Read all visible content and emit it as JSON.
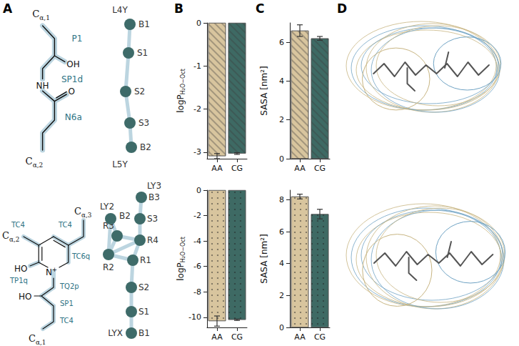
{
  "panel_letters": [
    "A",
    "B",
    "C",
    "D"
  ],
  "molecules": [
    {
      "atoms": [
        "Cα,1",
        "OH",
        "NH",
        "O",
        "Cα,2"
      ],
      "beads": [
        "P1",
        "SP1d",
        "N6a"
      ],
      "cg_nodes": [
        "B1",
        "S1",
        "S2",
        "S3",
        "B2"
      ],
      "cg_tags": [
        "L4Y",
        "L5Y"
      ]
    },
    {
      "atoms": [
        "Cα,3",
        "Cα,2",
        "HO",
        "N+",
        "HO",
        "Cα,1"
      ],
      "beads": [
        "TC4",
        "TC4",
        "TC6q",
        "TP1q",
        "TQ2p",
        "SP1",
        "TC4"
      ],
      "cg_nodes": [
        "B3",
        "S3",
        "R4",
        "R3",
        "B2",
        "R2",
        "R1",
        "S2",
        "S1",
        "B1"
      ],
      "cg_tags": [
        "LY3",
        "LY2",
        "LYX"
      ]
    }
  ],
  "chart_data": [
    {
      "type": "bar",
      "categories": [
        "AA",
        "CG"
      ],
      "values": [
        -3.09,
        -3.03
      ],
      "errors": [
        0.06,
        0.02
      ],
      "colors": [
        "#d8c59e",
        "#3e6a64"
      ],
      "ylabel": {
        "text": "logP",
        "subscript": "H₂O−Oct"
      },
      "ylim": [
        -3.15,
        0
      ],
      "yticks": [
        0,
        -1,
        -2,
        -3
      ]
    },
    {
      "type": "bar",
      "categories": [
        "AA",
        "CG"
      ],
      "values": [
        6.6,
        6.2
      ],
      "errors": [
        0.3,
        0.1
      ],
      "colors": [
        "#d8c59e",
        "#3e6a64"
      ],
      "ylabel": "SASA [nm²]",
      "ylim": [
        0,
        7
      ],
      "yticks": [
        0,
        2,
        4,
        6
      ]
    },
    {
      "type": "bar",
      "categories": [
        "AA",
        "CG"
      ],
      "values": [
        -10.3,
        -10.2
      ],
      "errors": [
        0.4,
        0.05
      ],
      "colors": [
        "#d8c59e",
        "#3e6a64"
      ],
      "ylabel": {
        "text": "logP",
        "subscript": "H₂O−Oct"
      },
      "ylim": [
        -10.8,
        0
      ],
      "yticks": [
        0,
        -2,
        -4,
        -6,
        -8,
        -10
      ]
    },
    {
      "type": "bar",
      "categories": [
        "AA",
        "CG"
      ],
      "values": [
        8.2,
        7.1
      ],
      "errors": [
        0.15,
        0.3
      ],
      "colors": [
        "#d8c59e",
        "#3e6a64"
      ],
      "ylabel": "SASA [nm²]",
      "ylim": [
        0,
        8.6
      ],
      "yticks": [
        0,
        2,
        4,
        6,
        8
      ]
    }
  ]
}
